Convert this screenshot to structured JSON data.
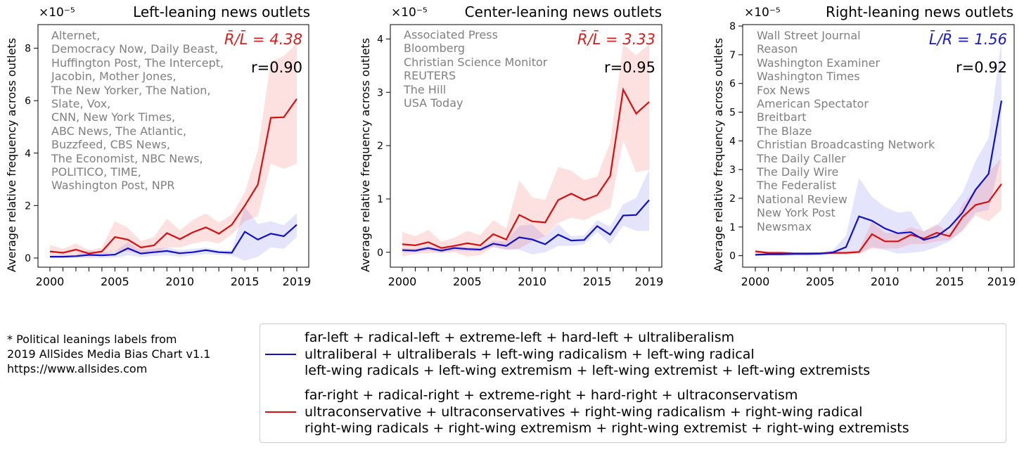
{
  "chart_data": [
    {
      "type": "line",
      "title": "Left-leaning news outlets",
      "multiplier": "×10⁻⁵",
      "ylabel": "Average relative frequency across outlets",
      "xlabel": "",
      "ylim": [
        -0.35,
        8.9
      ],
      "yticks": [
        0,
        2,
        4,
        6,
        8
      ],
      "xticks": [
        2000,
        2005,
        2010,
        2015,
        2019
      ],
      "ratio_label": "R̄/L̄ = 4.38",
      "ratio_color": "#d62020",
      "r_label": "r=0.90",
      "outlets": [
        "Alternet,",
        "Democracy Now, Daily Beast,",
        "Huffington Post, The Intercept,",
        "Jacobin, Mother Jones,",
        "The New Yorker, The Nation,",
        "Slate, Vox,",
        "CNN, New York Times,",
        "ABC News, The Atlantic,",
        "Buzzfeed, CBS News,",
        "The Economist, NBC News,",
        "POLITICO, TIME,",
        "Washington Post, NPR"
      ],
      "x": [
        2000,
        2001,
        2002,
        2003,
        2004,
        2005,
        2006,
        2007,
        2008,
        2009,
        2010,
        2011,
        2012,
        2013,
        2014,
        2015,
        2016,
        2017,
        2018,
        2019
      ],
      "series": [
        {
          "name": "far-left",
          "color": "#1010c8",
          "values": [
            0.05,
            0.05,
            0.07,
            0.12,
            0.1,
            0.13,
            0.37,
            0.17,
            0.22,
            0.27,
            0.18,
            0.22,
            0.3,
            0.22,
            0.2,
            1.0,
            0.7,
            0.93,
            0.83,
            1.27
          ],
          "upper": [
            0.1,
            0.1,
            0.12,
            0.3,
            0.2,
            0.25,
            0.6,
            0.3,
            0.35,
            0.4,
            0.3,
            0.35,
            0.4,
            0.3,
            0.3,
            1.95,
            1.3,
            1.4,
            1.25,
            1.7
          ],
          "lower": [
            0,
            0,
            0,
            0,
            0,
            0.02,
            0.1,
            0.05,
            0.08,
            0.1,
            0.05,
            0.1,
            0.15,
            0.12,
            0.1,
            -0.1,
            0.05,
            0.4,
            0.35,
            0.8
          ]
        },
        {
          "name": "far-right",
          "color": "#d61010",
          "values": [
            0.25,
            0.2,
            0.32,
            0.17,
            0.25,
            0.8,
            0.7,
            0.4,
            0.48,
            0.95,
            0.72,
            0.98,
            1.17,
            0.93,
            1.27,
            2.0,
            2.8,
            5.35,
            5.37,
            6.07
          ],
          "upper": [
            0.5,
            0.35,
            0.55,
            0.3,
            0.4,
            1.4,
            1.15,
            0.65,
            0.8,
            1.5,
            1.05,
            1.45,
            1.7,
            1.35,
            1.65,
            2.5,
            4.1,
            7.5,
            7.7,
            8.2
          ],
          "lower": [
            0.1,
            0.05,
            0.1,
            0.05,
            0.1,
            0.25,
            0.25,
            0.15,
            0.2,
            0.4,
            0.4,
            0.55,
            0.65,
            0.55,
            0.9,
            1.4,
            1.6,
            3.6,
            3.4,
            3.6
          ]
        }
      ]
    },
    {
      "type": "line",
      "title": "Center-leaning news outlets",
      "multiplier": "×10⁻⁵",
      "ylabel": "Average relative frequency across outlets",
      "xlabel": "",
      "ylim": [
        -0.28,
        4.27
      ],
      "yticks": [
        0,
        1,
        2,
        3,
        4
      ],
      "xticks": [
        2000,
        2005,
        2010,
        2015,
        2019
      ],
      "ratio_label": "R̄/L̄ = 3.33",
      "ratio_color": "#d62020",
      "r_label": "r=0.95",
      "outlets": [
        "Associated Press",
        "Bloomberg",
        "Christian Science Monitor",
        "REUTERS",
        "The Hill",
        "USA Today"
      ],
      "x": [
        2000,
        2001,
        2002,
        2003,
        2004,
        2005,
        2006,
        2007,
        2008,
        2009,
        2010,
        2011,
        2012,
        2013,
        2014,
        2015,
        2016,
        2017,
        2018,
        2019
      ],
      "series": [
        {
          "name": "far-left",
          "color": "#1010c8",
          "values": [
            0.04,
            0.03,
            0.08,
            0.03,
            0.08,
            0.06,
            0.05,
            0.16,
            0.12,
            0.28,
            0.24,
            0.15,
            0.33,
            0.22,
            0.23,
            0.49,
            0.33,
            0.69,
            0.7,
            0.98
          ],
          "upper": [
            0.08,
            0.07,
            0.12,
            0.07,
            0.12,
            0.1,
            0.09,
            0.22,
            0.2,
            0.5,
            0.52,
            0.3,
            0.53,
            0.3,
            0.32,
            0.6,
            0.48,
            0.9,
            1.02,
            1.55
          ],
          "lower": [
            0,
            0,
            0.03,
            0,
            0.03,
            0.02,
            0.02,
            0.1,
            0.05,
            0.05,
            -0.04,
            0,
            0.12,
            0.12,
            0.15,
            0.38,
            0.15,
            0.5,
            0.4,
            0.4
          ]
        },
        {
          "name": "far-right",
          "color": "#d61010",
          "values": [
            0.15,
            0.13,
            0.19,
            0.08,
            0.12,
            0.17,
            0.13,
            0.34,
            0.24,
            0.7,
            0.58,
            0.56,
            0.98,
            1.1,
            0.98,
            1.07,
            1.43,
            3.05,
            2.6,
            2.82
          ],
          "upper": [
            0.38,
            0.3,
            0.42,
            0.2,
            0.27,
            0.4,
            0.32,
            0.6,
            0.45,
            1.35,
            1.03,
            0.98,
            1.6,
            1.53,
            1.35,
            1.42,
            2.05,
            3.9,
            3.7,
            3.9
          ],
          "lower": [
            -0.08,
            -0.03,
            -0.02,
            -0.02,
            0,
            -0.08,
            -0.05,
            0.1,
            0.05,
            0.07,
            0.2,
            0.3,
            0.55,
            0.65,
            0.6,
            0.72,
            0.83,
            2.1,
            1.5,
            1.55
          ]
        }
      ]
    },
    {
      "type": "line",
      "title": "Right-leaning news outlets",
      "multiplier": "×10⁻⁵",
      "ylabel": "Average relative frequency across outlets",
      "xlabel": "",
      "ylim": [
        -0.4,
        8.05
      ],
      "yticks": [
        0,
        1,
        2,
        3,
        4,
        5,
        6,
        7,
        8
      ],
      "xticks": [
        2000,
        2005,
        2010,
        2015,
        2019
      ],
      "ratio_label": "L̄/R̄ = 1.56",
      "ratio_color": "#1a1ac8",
      "r_label": "r=0.92",
      "outlets": [
        "Wall Street Journal",
        "Reason",
        "Washington Examiner",
        "Washington Times",
        "Fox News",
        "American Spectator",
        "Breitbart",
        "The Blaze",
        "Christian Broadcasting Network",
        "The Daily Caller",
        "The Daily Wire",
        "The Federalist",
        "National Review",
        "New York Post",
        "Newsmax"
      ],
      "x": [
        2000,
        2001,
        2002,
        2003,
        2004,
        2005,
        2006,
        2007,
        2008,
        2009,
        2010,
        2011,
        2012,
        2013,
        2014,
        2015,
        2016,
        2017,
        2018,
        2019
      ],
      "series": [
        {
          "name": "far-left",
          "color": "#1010c8",
          "values": [
            0.03,
            0.05,
            0.05,
            0.06,
            0.06,
            0.07,
            0.12,
            0.3,
            1.37,
            1.22,
            0.95,
            0.78,
            0.82,
            0.55,
            0.67,
            1.0,
            1.5,
            2.3,
            2.85,
            5.4
          ],
          "upper": [
            0.08,
            0.08,
            0.08,
            0.1,
            0.1,
            0.12,
            0.2,
            0.7,
            2.7,
            2.05,
            1.7,
            1.5,
            1.55,
            0.85,
            1.05,
            1.6,
            2.2,
            3.3,
            4.1,
            7.5
          ],
          "lower": [
            0,
            0,
            0,
            0,
            0,
            0,
            0.05,
            0.08,
            0.1,
            0.3,
            0.2,
            0.07,
            0.1,
            0.15,
            0.3,
            0.5,
            0.9,
            1.5,
            1.6,
            3.5
          ]
        },
        {
          "name": "far-right",
          "color": "#d61010",
          "values": [
            0.15,
            0.1,
            0.1,
            0.08,
            0.08,
            0.08,
            0.1,
            0.1,
            0.13,
            0.75,
            0.5,
            0.5,
            0.73,
            0.6,
            0.8,
            0.68,
            1.35,
            1.77,
            1.88,
            2.5
          ],
          "upper": [
            0.2,
            0.15,
            0.15,
            0.12,
            0.12,
            0.13,
            0.15,
            0.15,
            0.2,
            1.2,
            0.8,
            0.8,
            1.0,
            0.85,
            1.1,
            0.8,
            1.8,
            2.3,
            2.9,
            3.4
          ],
          "lower": [
            0.08,
            0.05,
            0.05,
            0.04,
            0.04,
            0.04,
            0.05,
            0.05,
            0.05,
            0.25,
            0.25,
            0.25,
            0.4,
            0.4,
            0.5,
            0.55,
            0.85,
            1.4,
            1.2,
            1.6
          ]
        }
      ]
    }
  ],
  "footnote": [
    "* Political leanings labels from",
    "2019 AllSides Media Bias Chart v1.1",
    "https://www.allsides.com"
  ],
  "legend": {
    "left": {
      "color": "#1010c8",
      "lines": [
        "far-left + radical-left + extreme-left + hard-left + ultraliberalism",
        "ultraliberal + ultraliberals + left-wing radicalism + left-wing radical",
        "left-wing radicals + left-wing extremism + left-wing extremist + left-wing extremists"
      ]
    },
    "right": {
      "color": "#d61010",
      "lines": [
        "far-right + radical-right + extreme-right + hard-right + ultraconservatism",
        "ultraconservative + ultraconservatives + right-wing radicalism + right-wing radical",
        "right-wing radicals + right-wing extremism + right-wing extremist + right-wing extremists"
      ]
    }
  }
}
